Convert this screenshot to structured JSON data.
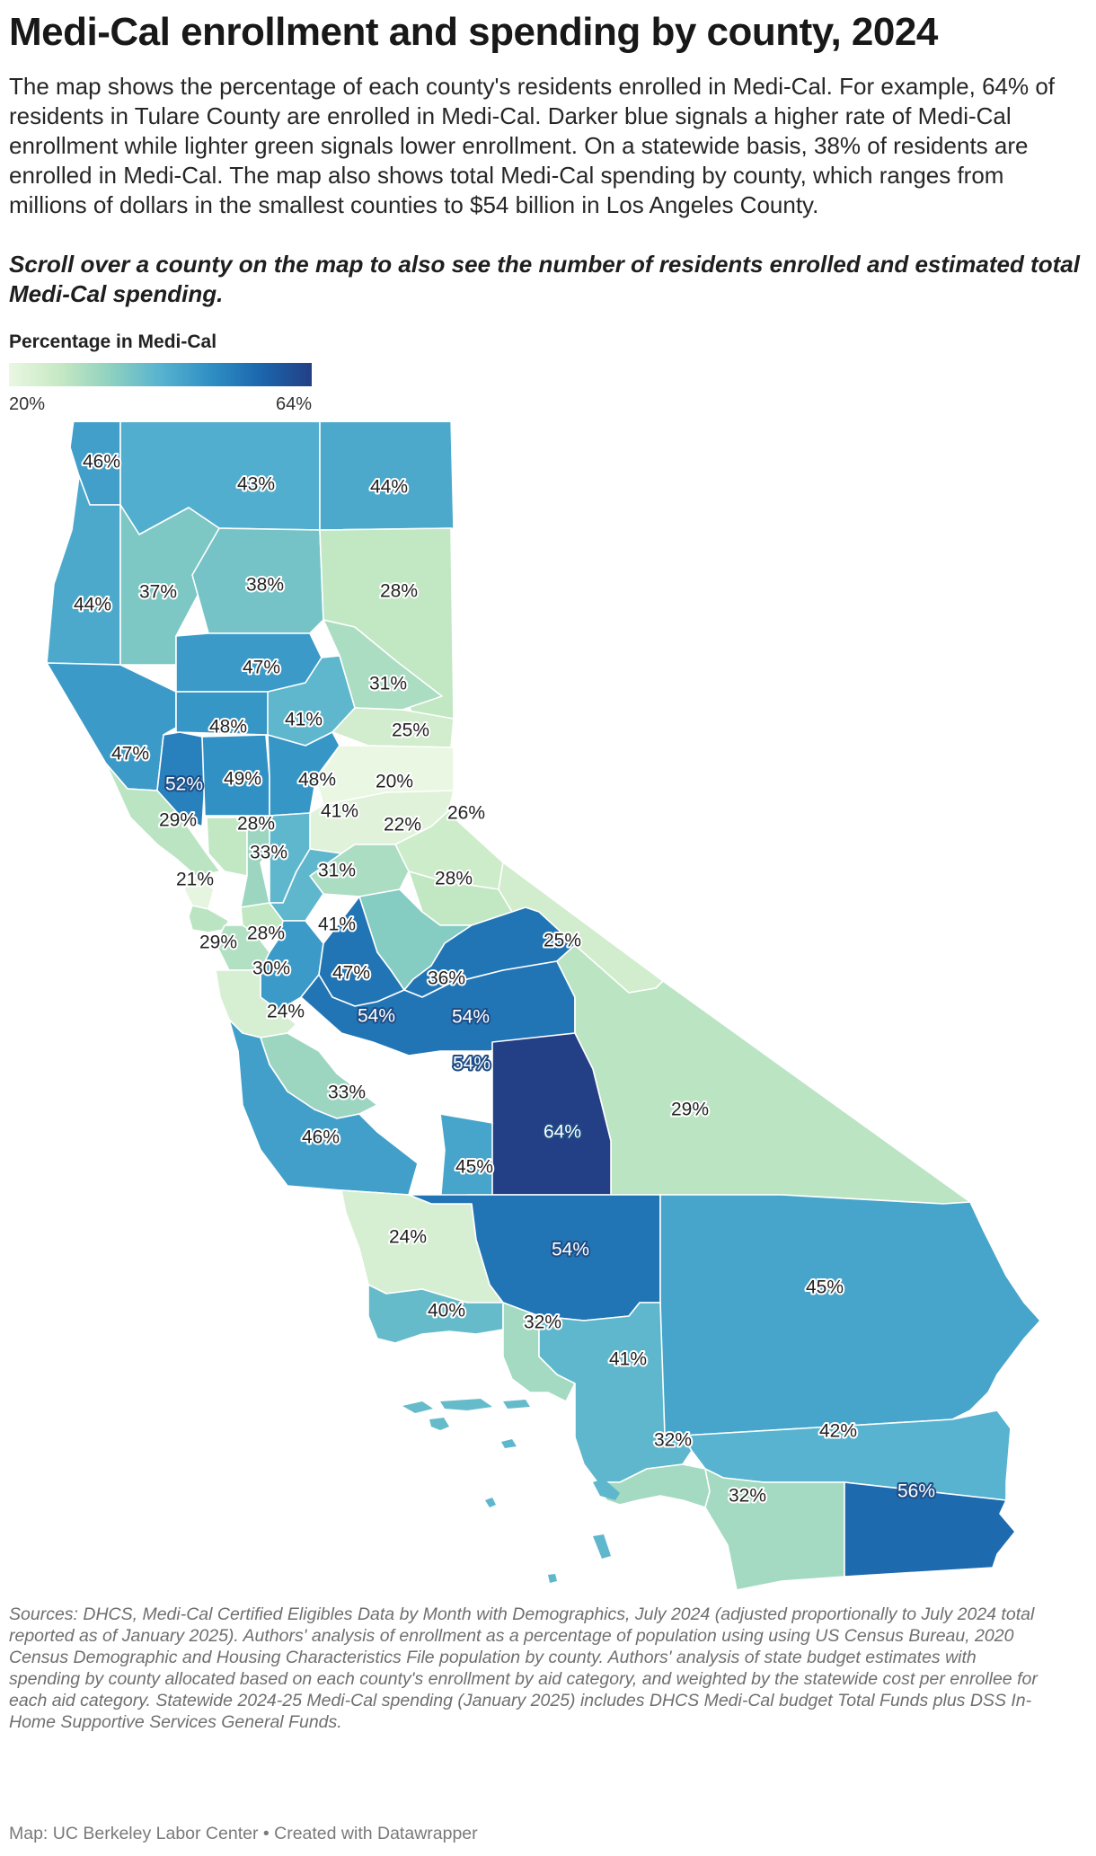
{
  "title": "Medi-Cal enrollment and spending by county, 2024",
  "description": "The map shows the percentage of each county's residents enrolled in Medi-Cal. For example, 64% of residents in Tulare County are enrolled in Medi-Cal. Darker blue signals a higher rate of Medi-Cal enrollment while lighter green signals lower enrollment. On a statewide basis, 38% of residents are enrolled in Medi-Cal. The map also shows total Medi-Cal spending by county, which ranges from millions of dollars in the smallest counties to $54 billion in Los Angeles County.",
  "instruction": "Scroll over a county on the map to also see the number of residents enrolled and estimated total Medi-Cal spending.",
  "legend": {
    "title": "Percentage in Medi-Cal",
    "min_label": "20%",
    "max_label": "64%",
    "min": 20,
    "max": 64,
    "colors": [
      "#eaf7e3",
      "#c6e9c3",
      "#8fd1c0",
      "#57b3cf",
      "#2f8fc4",
      "#1b66ad",
      "#233f85"
    ]
  },
  "labels": [
    {
      "text": "46%",
      "value": 46
    },
    {
      "text": "43%",
      "value": 43
    },
    {
      "text": "44%",
      "value": 44
    },
    {
      "text": "44%",
      "value": 44
    },
    {
      "text": "37%",
      "value": 37
    },
    {
      "text": "38%",
      "value": 38
    },
    {
      "text": "28%",
      "value": 28
    },
    {
      "text": "47%",
      "value": 47
    },
    {
      "text": "31%",
      "value": 31
    },
    {
      "text": "47%",
      "value": 47
    },
    {
      "text": "48%",
      "value": 48
    },
    {
      "text": "41%",
      "value": 41
    },
    {
      "text": "25%",
      "value": 25
    },
    {
      "text": "52%",
      "value": 52
    },
    {
      "text": "49%",
      "value": 49
    },
    {
      "text": "48%",
      "value": 48
    },
    {
      "text": "20%",
      "value": 20
    },
    {
      "text": "22%",
      "value": 22
    },
    {
      "text": "29%",
      "value": 29
    },
    {
      "text": "28%",
      "value": 28
    },
    {
      "text": "41%",
      "value": 41
    },
    {
      "text": "26%",
      "value": 26
    },
    {
      "text": "33%",
      "value": 33
    },
    {
      "text": "21%",
      "value": 21
    },
    {
      "text": "31%",
      "value": 31
    },
    {
      "text": "28%",
      "value": 28
    },
    {
      "text": "41%",
      "value": 41
    },
    {
      "text": "25%",
      "value": 25
    },
    {
      "text": "29%",
      "value": 29
    },
    {
      "text": "28%",
      "value": 28
    },
    {
      "text": "30%",
      "value": 30
    },
    {
      "text": "47%",
      "value": 47
    },
    {
      "text": "36%",
      "value": 36
    },
    {
      "text": "24%",
      "value": 24
    },
    {
      "text": "54%",
      "value": 54
    },
    {
      "text": "54%",
      "value": 54
    },
    {
      "text": "54%",
      "value": 54
    },
    {
      "text": "33%",
      "value": 33
    },
    {
      "text": "29%",
      "value": 29
    },
    {
      "text": "46%",
      "value": 46
    },
    {
      "text": "64%",
      "value": 64
    },
    {
      "text": "45%",
      "value": 45
    },
    {
      "text": "24%",
      "value": 24
    },
    {
      "text": "54%",
      "value": 54
    },
    {
      "text": "45%",
      "value": 45
    },
    {
      "text": "40%",
      "value": 40
    },
    {
      "text": "32%",
      "value": 32
    },
    {
      "text": "41%",
      "value": 41
    },
    {
      "text": "42%",
      "value": 42
    },
    {
      "text": "32%",
      "value": 32
    },
    {
      "text": "32%",
      "value": 32
    },
    {
      "text": "56%",
      "value": 56
    }
  ],
  "sources": "Sources: DHCS, Medi-Cal Certified Eligibles Data by Month with Demographics, July 2024 (adjusted proportionally to July 2024 total reported as of January 2025). Authors' analysis of enrollment as a percentage of population using using US Census Bureau, 2020 Census Demographic and Housing Characteristics File population by county. Authors' analysis of state budget estimates with spending by county allocated based on each county's enrollment by aid category, and weighted by the statewide cost per enrollee for each aid category. Statewide 2024-25 Medi-Cal spending (January 2025) includes DHCS Medi-Cal budget Total Funds plus DSS In-Home Supportive Services General Funds.",
  "credit": "Map: UC Berkeley Labor Center • Created with Datawrapper"
}
